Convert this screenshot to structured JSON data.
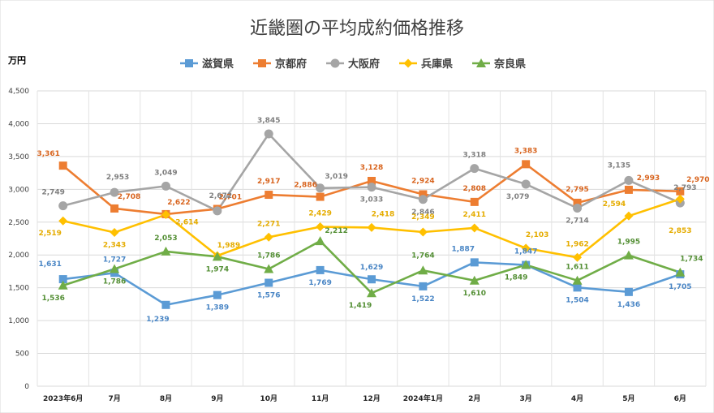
{
  "chart_data": {
    "type": "line",
    "title": "近畿圏の平均成約価格推移",
    "ylabel": "万円",
    "xlabel": "",
    "ylim": [
      0,
      4500
    ],
    "ytick_step": 500,
    "ytick_labels": [
      "0",
      "500",
      "1,000",
      "1,500",
      "2,000",
      "2,500",
      "3,000",
      "3,500",
      "4,000",
      "4,500"
    ],
    "grid": true,
    "legend_position": "top",
    "categories": [
      "2023年6月",
      "7月",
      "8月",
      "9月",
      "10月",
      "11月",
      "12月",
      "2024年1月",
      "2月",
      "3月",
      "4月",
      "5月",
      "6月"
    ],
    "series": [
      {
        "name": "滋賀県",
        "color": "#5B9BD5",
        "marker": "square",
        "values": [
          1631,
          1727,
          1239,
          1389,
          1576,
          1769,
          1629,
          1522,
          1887,
          1847,
          1504,
          1436,
          1705
        ],
        "labels": [
          "1,631",
          "1,727",
          "1,239",
          "1,389",
          "1,576",
          "1,769",
          "1,629",
          "1,522",
          "1,887",
          "1,847",
          "1,504",
          "1,436",
          "1,705"
        ]
      },
      {
        "name": "京都府",
        "color": "#ED7D31",
        "marker": "square",
        "values": [
          3361,
          2708,
          2622,
          2701,
          2917,
          2886,
          3128,
          2924,
          2808,
          3383,
          2795,
          2993,
          2970
        ],
        "labels": [
          "3,361",
          "2,708",
          "2,622",
          "2,701",
          "2,917",
          "2,886",
          "3,128",
          "2,924",
          "2,808",
          "3,383",
          "2,795",
          "2,993",
          "2,970"
        ]
      },
      {
        "name": "大阪府",
        "color": "#A5A5A5",
        "marker": "circle",
        "values": [
          2749,
          2953,
          3049,
          2672,
          3845,
          3019,
          3033,
          2846,
          3318,
          3079,
          2714,
          3135,
          2793
        ],
        "labels": [
          "2,749",
          "2,953",
          "3,049",
          "2,672",
          "3,845",
          "3,019",
          "3,033",
          "2,846",
          "3,318",
          "3,079",
          "2,714",
          "3,135",
          "2,793"
        ]
      },
      {
        "name": "兵庫県",
        "color": "#FFC000",
        "marker": "diamond",
        "values": [
          2519,
          2343,
          2614,
          1989,
          2271,
          2429,
          2418,
          2349,
          2411,
          2103,
          1962,
          2594,
          2853
        ],
        "labels": [
          "2,519",
          "2,343",
          "2,614",
          "1,989",
          "2,271",
          "2,429",
          "2,418",
          "2,349",
          "2,411",
          "2,103",
          "1,962",
          "2,594",
          "2,853"
        ]
      },
      {
        "name": "奈良県",
        "color": "#70AD47",
        "marker": "triangle",
        "values": [
          1536,
          1786,
          2053,
          1974,
          1786,
          2212,
          1419,
          1764,
          1610,
          1849,
          1611,
          1995,
          1734
        ],
        "labels": [
          "1,536",
          "1,786",
          "2,053",
          "1,974",
          "1,786",
          "2,212",
          "1,419",
          "1,764",
          "1,610",
          "1,849",
          "1,611",
          "1,995",
          "1,734"
        ]
      }
    ]
  }
}
